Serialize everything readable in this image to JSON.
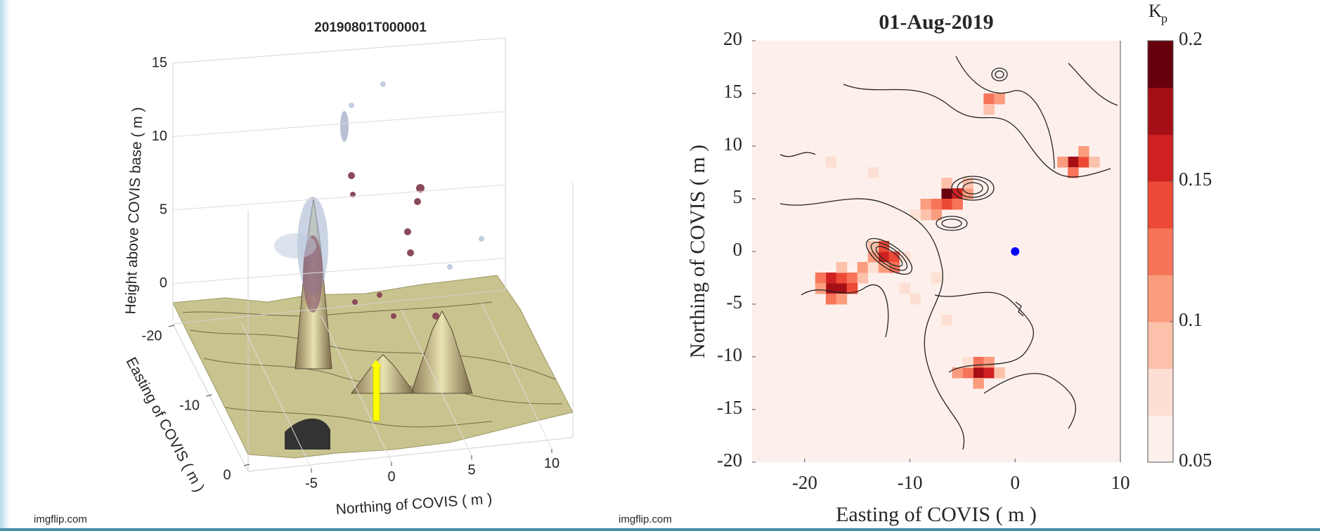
{
  "chart_data": [
    {
      "type": "surface3d",
      "title": "20190801T000001",
      "zlabel": "Height above COVIS base ( m )",
      "xlabel": "Easting of COVIS ( m )",
      "ylabel": "Northing of COVIS ( m )",
      "zlim": [
        -2.5,
        15
      ],
      "zticks": [
        0,
        5,
        10,
        15
      ],
      "xlim": [
        -22,
        2
      ],
      "xticks": [
        -20,
        -10,
        0
      ],
      "ylim": [
        -8,
        12
      ],
      "yticks": [
        -5,
        0,
        5,
        10
      ],
      "grid": true
    },
    {
      "type": "heatmap",
      "title": "01-Aug-2019",
      "xlabel": "Easting of COVIS ( m )",
      "ylabel": "Northing of COVIS ( m )",
      "xlim": [
        -25,
        10
      ],
      "xticks": [
        -20,
        -10,
        0,
        10
      ],
      "ylim": [
        -20,
        20
      ],
      "yticks": [
        -20,
        -15,
        -10,
        -5,
        0,
        5,
        10,
        15,
        20
      ],
      "colorbar_label": "K",
      "colorbar_label_sub": "p",
      "clim": [
        0.05,
        0.2
      ],
      "cticks": [
        0.05,
        0.1,
        0.15,
        0.2
      ],
      "colormap": [
        "#fdf0ec",
        "#fde0d3",
        "#fcc1aa",
        "#fb9c7e",
        "#f7735a",
        "#ec4a36",
        "#cf2120",
        "#a50f15",
        "#67000d"
      ],
      "marker": {
        "x": 0,
        "y": 0,
        "color": "#0000ff"
      },
      "cells": [
        [
          -18,
          -4,
          0.17
        ],
        [
          -17,
          -4,
          0.18
        ],
        [
          -18,
          -3,
          0.16
        ],
        [
          -17,
          -3,
          0.15
        ],
        [
          -19,
          -3,
          0.13
        ],
        [
          -16,
          -3,
          0.12
        ],
        [
          -16,
          -4,
          0.14
        ],
        [
          -18,
          -5,
          0.12
        ],
        [
          -17,
          -5,
          0.11
        ],
        [
          -19,
          -4,
          0.1
        ],
        [
          -15,
          -3,
          0.09
        ],
        [
          -15,
          -2,
          0.1
        ],
        [
          -14,
          -2,
          0.08
        ],
        [
          -17,
          -2,
          0.09
        ],
        [
          -13,
          -1,
          0.16
        ],
        [
          -12,
          -1,
          0.15
        ],
        [
          -13,
          0,
          0.14
        ],
        [
          -12,
          -2,
          0.12
        ],
        [
          -14,
          -1,
          0.11
        ],
        [
          -13,
          -2,
          0.1
        ],
        [
          -14,
          0,
          0.09
        ],
        [
          -11,
          -1,
          0.08
        ],
        [
          -7,
          5,
          0.19
        ],
        [
          -6,
          5,
          0.16
        ],
        [
          -7,
          4,
          0.15
        ],
        [
          -8,
          4,
          0.13
        ],
        [
          -6,
          4,
          0.12
        ],
        [
          -9,
          4,
          0.11
        ],
        [
          -8,
          3,
          0.1
        ],
        [
          -9,
          3,
          0.09
        ],
        [
          -5,
          5,
          0.1
        ],
        [
          -7,
          6,
          0.09
        ],
        [
          -10,
          3,
          0.08
        ],
        [
          -5,
          6,
          0.09
        ],
        [
          -4,
          -12,
          0.17
        ],
        [
          -3,
          -12,
          0.16
        ],
        [
          -5,
          -12,
          0.13
        ],
        [
          -4,
          -11,
          0.12
        ],
        [
          -3,
          -11,
          0.11
        ],
        [
          -6,
          -12,
          0.1
        ],
        [
          -4,
          -13,
          0.1
        ],
        [
          -2,
          -12,
          0.09
        ],
        [
          -5,
          -11,
          0.08
        ],
        [
          5,
          8,
          0.17
        ],
        [
          6,
          8,
          0.15
        ],
        [
          5,
          7,
          0.13
        ],
        [
          6,
          9,
          0.11
        ],
        [
          4,
          8,
          0.1
        ],
        [
          7,
          8,
          0.09
        ],
        [
          -3,
          14,
          0.13
        ],
        [
          -2,
          14,
          0.11
        ],
        [
          -3,
          13,
          0.09
        ],
        [
          -11,
          -4,
          0.08
        ],
        [
          -10,
          -5,
          0.08
        ],
        [
          -8,
          -3,
          0.07
        ],
        [
          -14,
          7,
          0.07
        ],
        [
          -18,
          8,
          0.07
        ],
        [
          -7,
          -7,
          0.07
        ]
      ]
    }
  ],
  "watermarks": [
    "imgflip.com",
    "imgflip.com"
  ]
}
